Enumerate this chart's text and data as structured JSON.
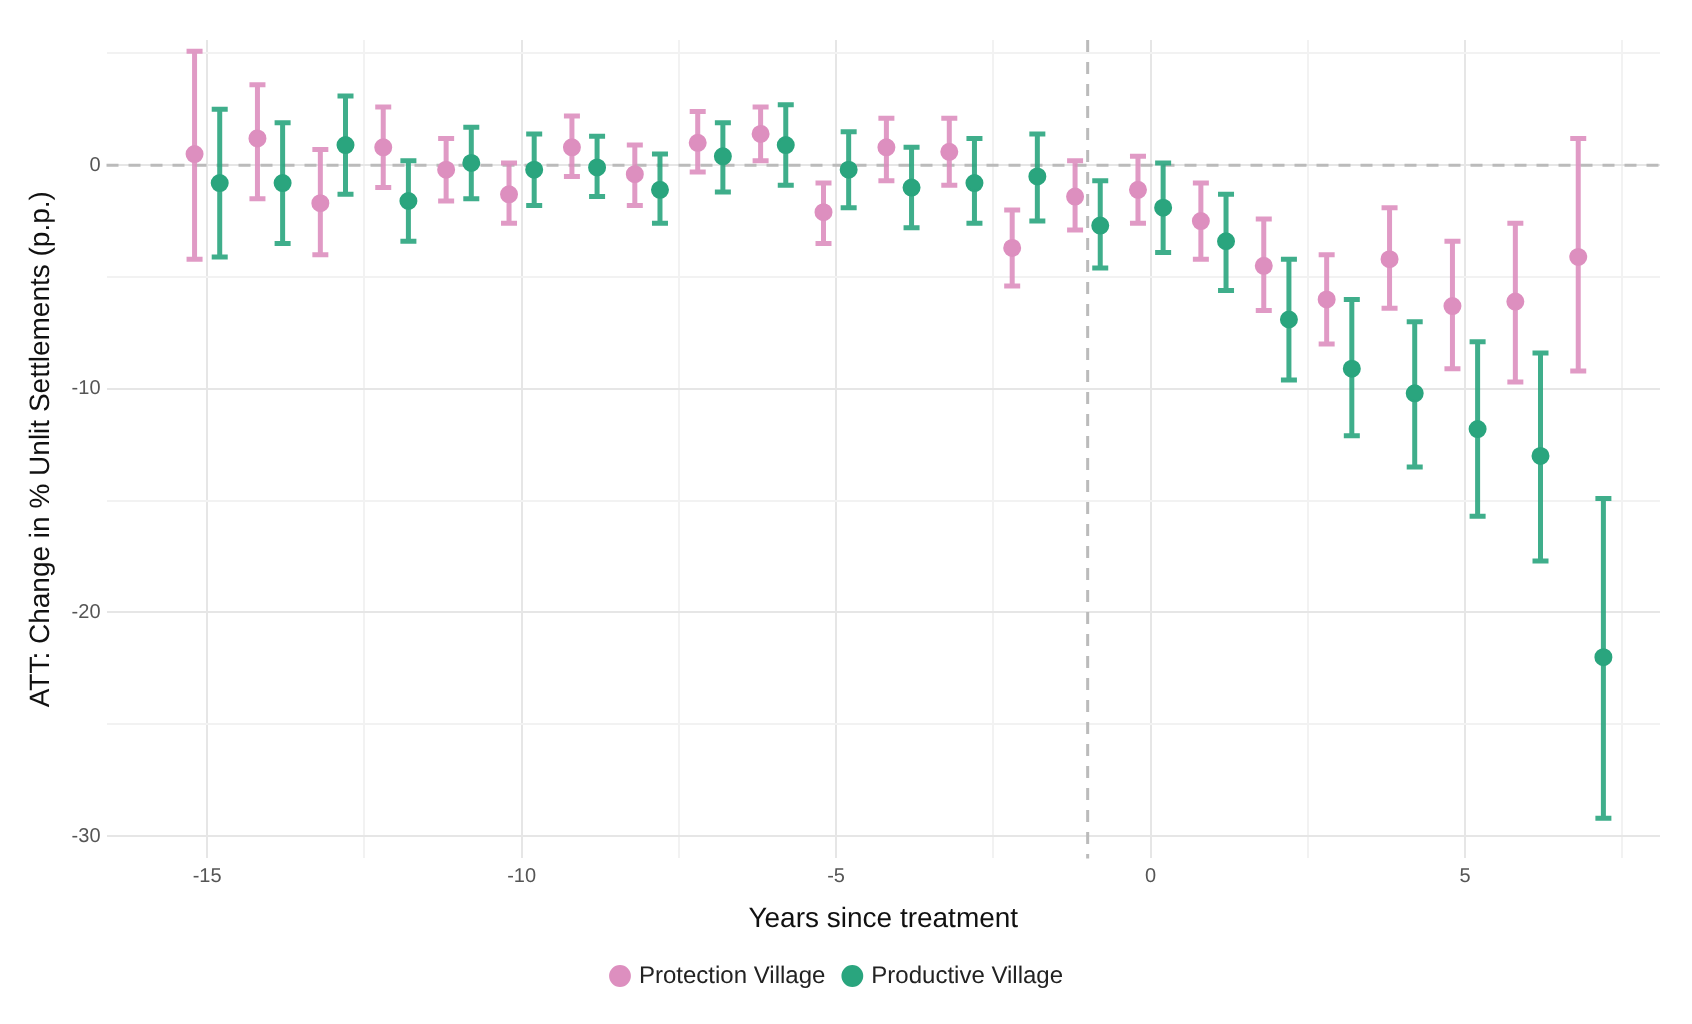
{
  "chart_data": {
    "type": "scatter",
    "xlabel": "Years since treatment",
    "ylabel": "ATT: Change in % Unlit Settlements (p.p.)",
    "xlim": [
      -16.6,
      8.1
    ],
    "ylim": [
      -31,
      5.6
    ],
    "xticks": [
      -15,
      {
        "value": -12.5,
        "label": null
      },
      -10,
      {
        "value": -7.5,
        "label": null
      },
      -5,
      {
        "value": -2.5,
        "label": null
      },
      0,
      {
        "value": 2.5,
        "label": null
      },
      5,
      {
        "value": 7.5,
        "label": null
      }
    ],
    "yticks": [
      {
        "value": 5,
        "label": null
      },
      0,
      {
        "value": -5,
        "label": null
      },
      -10,
      {
        "value": -15,
        "label": null
      },
      -20,
      {
        "value": -25,
        "label": null
      },
      -30
    ],
    "grid": true,
    "legend": "bottom",
    "marker": "circle",
    "ref_lines": [
      {
        "axis": "y",
        "value": 0,
        "color": "#bbbbbb",
        "line_style": "dashed"
      },
      {
        "axis": "x",
        "value": -1,
        "color": "#bbbbbb",
        "line_style": "dashed"
      }
    ],
    "series": [
      {
        "name": "Protection Village",
        "color": "#dd8fbf",
        "x": [
          -15.2,
          -14.2,
          -13.2,
          -12.2,
          -11.2,
          -10.2,
          -9.2,
          -8.2,
          -7.2,
          -6.2,
          -5.2,
          -4.2,
          -3.2,
          -2.2,
          -1.2,
          -0.2,
          0.8,
          1.8,
          2.8,
          3.8,
          4.8,
          5.8,
          6.8
        ],
        "values": [
          0.5,
          1.2,
          -1.7,
          0.8,
          -0.2,
          -1.3,
          0.8,
          -0.4,
          1.0,
          1.4,
          -2.1,
          0.8,
          0.6,
          -3.7,
          -1.4,
          -1.1,
          -2.5,
          -4.5,
          -6.0,
          -4.2,
          -6.3,
          -6.1,
          -4.1
        ],
        "errors": [
          [
            -4.2,
            5.1
          ],
          [
            -1.5,
            3.6
          ],
          [
            -4.0,
            0.7
          ],
          [
            -1.0,
            2.6
          ],
          [
            -1.6,
            1.2
          ],
          [
            -2.6,
            0.1
          ],
          [
            -0.5,
            2.2
          ],
          [
            -1.8,
            0.9
          ],
          [
            -0.3,
            2.4
          ],
          [
            0.2,
            2.6
          ],
          [
            -3.5,
            -0.8
          ],
          [
            -0.7,
            2.1
          ],
          [
            -0.9,
            2.1
          ],
          [
            -5.4,
            -2.0
          ],
          [
            -2.9,
            0.2
          ],
          [
            -2.6,
            0.4
          ],
          [
            -4.2,
            -0.8
          ],
          [
            -6.5,
            -2.4
          ],
          [
            -8.0,
            -4.0
          ],
          [
            -6.4,
            -1.9
          ],
          [
            -9.1,
            -3.4
          ],
          [
            -9.7,
            -2.6
          ],
          [
            -9.2,
            1.2
          ]
        ]
      },
      {
        "name": "Productive Village",
        "color": "#2aa57e",
        "x": [
          -14.8,
          -13.8,
          -12.8,
          -11.8,
          -10.8,
          -9.8,
          -8.8,
          -7.8,
          -6.8,
          -5.8,
          -4.8,
          -3.8,
          -2.8,
          -1.8,
          -0.8,
          0.2,
          1.2,
          2.2,
          3.2,
          4.2,
          5.2,
          6.2,
          7.2
        ],
        "values": [
          -0.8,
          -0.8,
          0.9,
          -1.6,
          0.1,
          -0.2,
          -0.1,
          -1.1,
          0.4,
          0.9,
          -0.2,
          -1.0,
          -0.8,
          -0.5,
          -2.7,
          -1.9,
          -3.4,
          -6.9,
          -9.1,
          -10.2,
          -11.8,
          -13.0,
          -22.0
        ],
        "errors": [
          [
            -4.1,
            2.5
          ],
          [
            -3.5,
            1.9
          ],
          [
            -1.3,
            3.1
          ],
          [
            -3.4,
            0.2
          ],
          [
            -1.5,
            1.7
          ],
          [
            -1.8,
            1.4
          ],
          [
            -1.4,
            1.3
          ],
          [
            -2.6,
            0.5
          ],
          [
            -1.2,
            1.9
          ],
          [
            -0.9,
            2.7
          ],
          [
            -1.9,
            1.5
          ],
          [
            -2.8,
            0.8
          ],
          [
            -2.6,
            1.2
          ],
          [
            -2.5,
            1.4
          ],
          [
            -4.6,
            -0.7
          ],
          [
            -3.9,
            0.1
          ],
          [
            -5.6,
            -1.3
          ],
          [
            -9.6,
            -4.2
          ],
          [
            -12.1,
            -6.0
          ],
          [
            -13.5,
            -7.0
          ],
          [
            -15.7,
            -7.9
          ],
          [
            -17.7,
            -8.4
          ],
          [
            -29.2,
            -14.9
          ]
        ]
      }
    ]
  }
}
